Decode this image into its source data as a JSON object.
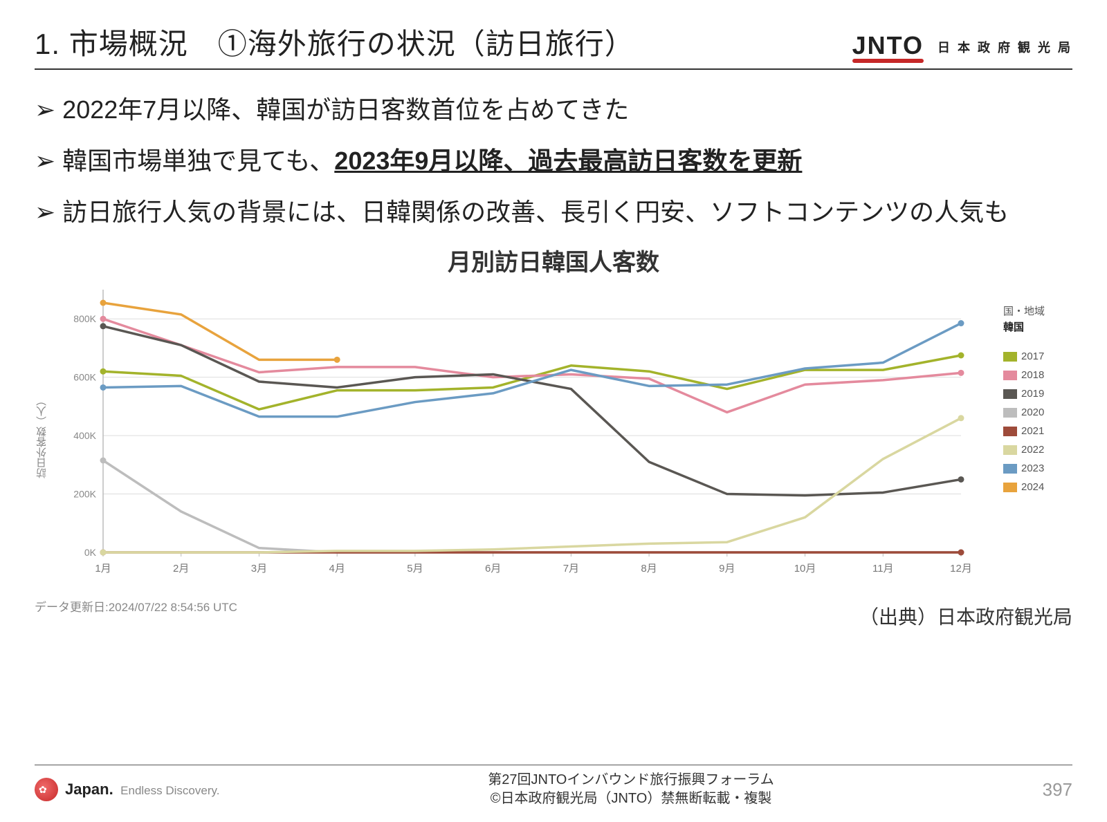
{
  "header": {
    "title": "1. 市場概況　①海外旅行の状況（訪日旅行）",
    "logo_text": "JNTO",
    "logo_sub": "日 本 政 府 観 光 局"
  },
  "bullets": [
    {
      "pre": "2022年7月以降、韓国が訪日客数首位を占めてきた",
      "bold": "",
      "post": ""
    },
    {
      "pre": "韓国市場単独で見ても、",
      "bold": "2023年9月以降、過去最高訪日客数を更新",
      "post": ""
    },
    {
      "pre": "訪日旅行人気の背景には、日韓関係の改善、長引く円安、ソフトコンテンツの人気も",
      "bold": "",
      "post": ""
    }
  ],
  "chart": {
    "title": "月別訪日韓国人客数",
    "type": "line",
    "y_axis_label": "訪日外客数（人）",
    "legend_head1": "国・地域",
    "legend_head2": "韓国",
    "x_categories": [
      "1月",
      "2月",
      "3月",
      "4月",
      "5月",
      "6月",
      "7月",
      "8月",
      "9月",
      "10月",
      "11月",
      "12月"
    ],
    "ylim": [
      0,
      900000
    ],
    "yticks": [
      0,
      200000,
      400000,
      600000,
      800000
    ],
    "ytick_labels": [
      "0K",
      "200K",
      "400K",
      "600K",
      "800K"
    ],
    "background_color": "#ffffff",
    "grid_color": "#dddddd",
    "axis_color": "#bbbbbb",
    "tick_font_color": "#888888",
    "line_width": 3.5,
    "series": [
      {
        "name": "2017",
        "color": "#a3b32b",
        "values": [
          620000,
          605000,
          490000,
          555000,
          555000,
          565000,
          640000,
          620000,
          560000,
          625000,
          625000,
          675000
        ]
      },
      {
        "name": "2018",
        "color": "#e48a9d",
        "values": [
          800000,
          710000,
          617000,
          635000,
          635000,
          600000,
          610000,
          595000,
          480000,
          575000,
          590000,
          615000
        ]
      },
      {
        "name": "2019",
        "color": "#5a5753",
        "values": [
          775000,
          710000,
          585000,
          565000,
          600000,
          610000,
          560000,
          310000,
          200000,
          195000,
          205000,
          250000
        ]
      },
      {
        "name": "2020",
        "color": "#bdbdbd",
        "values": [
          315000,
          140000,
          15000,
          0,
          0,
          0,
          0,
          0,
          0,
          0,
          0,
          0
        ]
      },
      {
        "name": "2021",
        "color": "#9e4b3a",
        "values": [
          0,
          0,
          0,
          0,
          0,
          0,
          0,
          0,
          0,
          0,
          0,
          0
        ]
      },
      {
        "name": "2022",
        "color": "#d9d7a0",
        "values": [
          0,
          0,
          0,
          5000,
          5000,
          10000,
          20000,
          30000,
          35000,
          120000,
          320000,
          460000
        ]
      },
      {
        "name": "2023",
        "color": "#6b9bc3",
        "values": [
          565000,
          570000,
          465000,
          465000,
          515000,
          545000,
          625000,
          570000,
          575000,
          630000,
          650000,
          785000
        ]
      },
      {
        "name": "2024",
        "color": "#e8a33d",
        "values": [
          855000,
          815000,
          660000,
          660000
        ]
      }
    ]
  },
  "meta": {
    "update_date": "データ更新日:2024/07/22 8:54:56 UTC",
    "source": "（出典）日本政府観光局"
  },
  "footer": {
    "japan_logo": "Japan.",
    "japan_sub": "Endless Discovery.",
    "line1": "第27回JNTOインバウンド旅行振興フォーラム",
    "line2": "©日本政府観光局（JNTO）禁無断転載・複製",
    "page": "397"
  }
}
